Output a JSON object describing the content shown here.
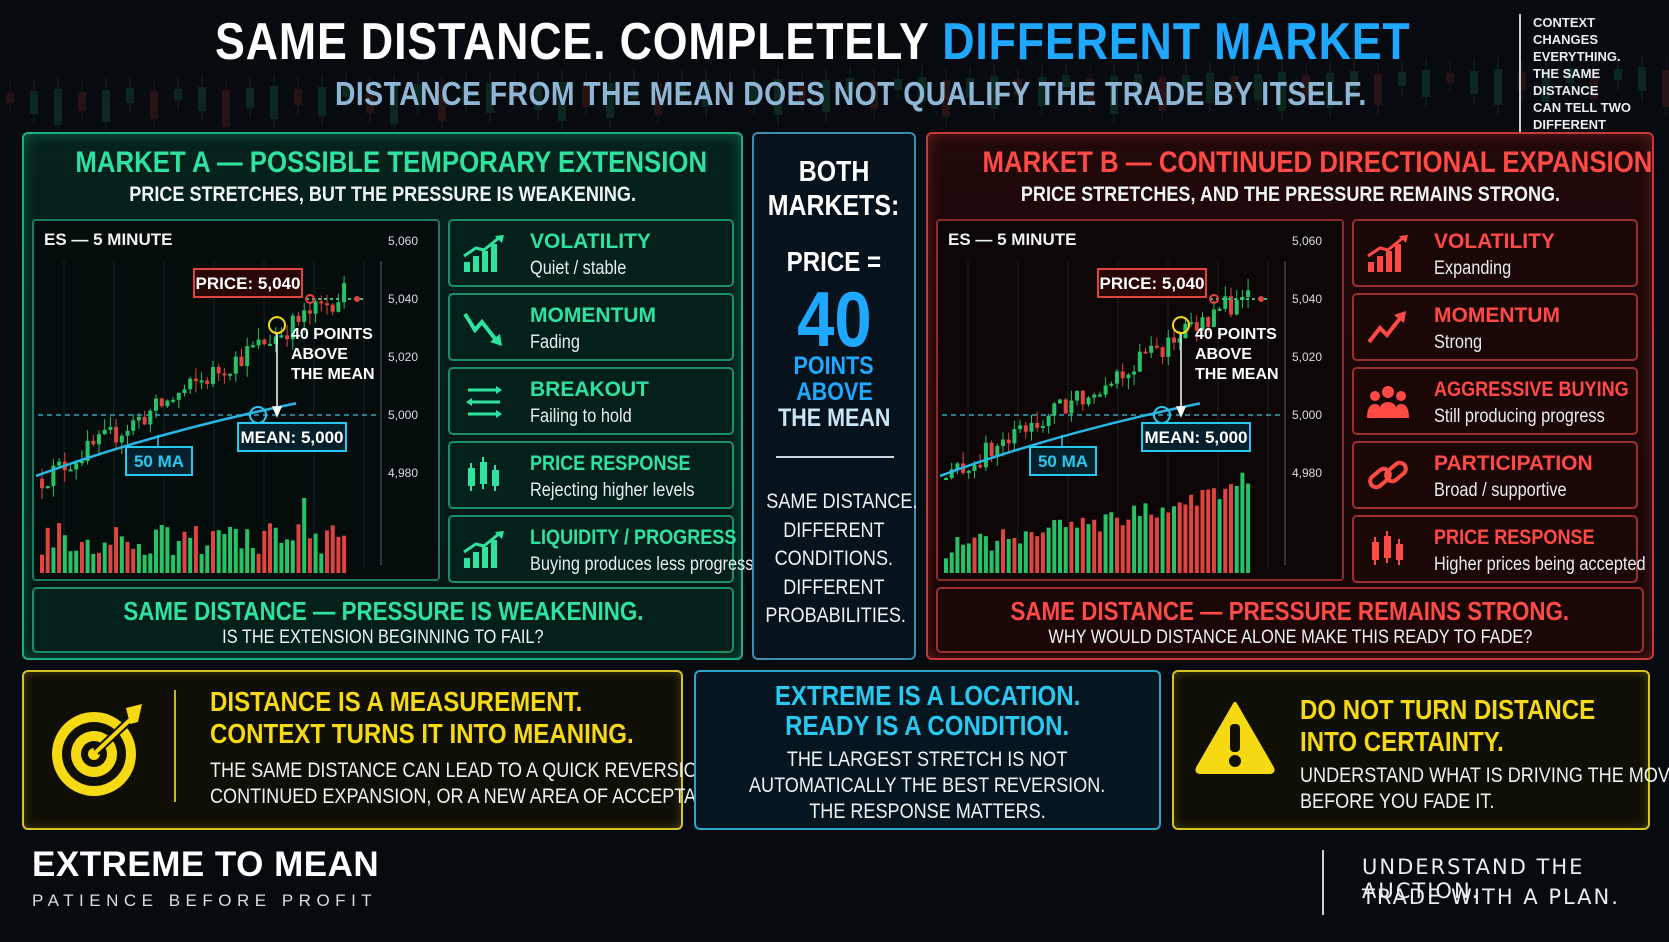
{
  "header": {
    "title_white": "SAME DISTANCE. COMPLETELY",
    "title_blue": "DIFFERENT MARKET",
    "subtitle": "DISTANCE FROM THE MEAN DOES NOT QUALIFY THE TRADE BY ITSELF.",
    "context_note": [
      "CONTEXT",
      "CHANGES",
      "EVERYTHING.",
      "THE SAME DISTANCE",
      "CAN TELL TWO",
      "DIFFERENT STORIES."
    ]
  },
  "market_a": {
    "title": "MARKET A — POSSIBLE TEMPORARY EXTENSION",
    "subtitle": "PRICE STRETCHES, BUT THE PRESSURE IS WEAKENING.",
    "chart": {
      "label": "ES — 5 MINUTE",
      "price_label": "PRICE: 5,040",
      "mean_label": "MEAN: 5,000",
      "ma_label": "50 MA",
      "distance_label": [
        "40 POINTS",
        "ABOVE",
        "THE MEAN"
      ],
      "y_ticks": [
        "5,060",
        "5,040",
        "5,020",
        "5,000",
        "4,980"
      ]
    },
    "indicators": [
      {
        "title": "VOLATILITY",
        "desc": "Quiet / stable",
        "icon": "bar-chart-up-icon"
      },
      {
        "title": "MOMENTUM",
        "desc": "Fading",
        "icon": "trend-down-icon"
      },
      {
        "title": "BREAKOUT",
        "desc": "Failing to hold",
        "icon": "arrows-back-forth-icon"
      },
      {
        "title": "PRICE RESPONSE",
        "desc": "Rejecting higher levels",
        "icon": "candlesticks-icon"
      },
      {
        "title": "LIQUIDITY / PROGRESS",
        "desc": "Buying produces less progress",
        "icon": "bar-chart-up-icon"
      }
    ],
    "footer_title": "SAME DISTANCE — PRESSURE IS WEAKENING.",
    "footer_sub": "IS THE EXTENSION BEGINNING TO FAIL?"
  },
  "middle": {
    "line1": "BOTH",
    "line2": "MARKETS:",
    "price_eq": "PRICE =",
    "big_number": "40",
    "points": "POINTS",
    "above": "ABOVE",
    "the_mean": "THE MEAN",
    "same": "SAME DISTANCE.",
    "diff1": "DIFFERENT",
    "cond": "CONDITIONS.",
    "diff2": "DIFFERENT",
    "prob": "PROBABILITIES."
  },
  "market_b": {
    "title": "MARKET B — CONTINUED DIRECTIONAL EXPANSION",
    "subtitle": "PRICE STRETCHES, AND THE PRESSURE REMAINS STRONG.",
    "chart": {
      "label": "ES — 5 MINUTE",
      "price_label": "PRICE: 5,040",
      "mean_label": "MEAN: 5,000",
      "ma_label": "50 MA",
      "distance_label": [
        "40 POINTS",
        "ABOVE",
        "THE MEAN"
      ],
      "y_ticks": [
        "5,060",
        "5,040",
        "5,020",
        "5,000",
        "4,980"
      ]
    },
    "indicators": [
      {
        "title": "VOLATILITY",
        "desc": "Expanding",
        "icon": "bar-chart-up-icon"
      },
      {
        "title": "MOMENTUM",
        "desc": "Strong",
        "icon": "trend-up-icon"
      },
      {
        "title": "AGGRESSIVE BUYING",
        "desc": "Still producing progress",
        "icon": "people-icon"
      },
      {
        "title": "PARTICIPATION",
        "desc": "Broad / supportive",
        "icon": "chain-link-icon"
      },
      {
        "title": "PRICE RESPONSE",
        "desc": "Higher prices being accepted",
        "icon": "candlesticks-icon"
      }
    ],
    "footer_title": "SAME DISTANCE — PRESSURE REMAINS STRONG.",
    "footer_sub": "WHY WOULD DISTANCE ALONE MAKE THIS READY TO FADE?"
  },
  "bottom": {
    "left": {
      "title1": "DISTANCE IS A MEASUREMENT.",
      "title2": "CONTEXT TURNS IT INTO MEANING.",
      "body1": "THE SAME DISTANCE CAN LEAD TO A QUICK REVERSION,",
      "body2": "CONTINUED EXPANSION, OR A NEW AREA OF ACCEPTANCE.",
      "icon": "target-icon"
    },
    "center": {
      "title1": "EXTREME IS A LOCATION.",
      "title2": "READY IS A CONDITION.",
      "body1": "THE LARGEST STRETCH IS NOT",
      "body2": "AUTOMATICALLY THE BEST REVERSION.",
      "body3": "THE RESPONSE MATTERS."
    },
    "right": {
      "title1": "DO NOT TURN DISTANCE",
      "title2": "INTO CERTAINTY.",
      "body1": "UNDERSTAND WHAT IS DRIVING THE MOVE",
      "body2": "BEFORE YOU FADE IT.",
      "icon": "warning-icon"
    }
  },
  "brand": {
    "name": "EXTREME TO MEAN",
    "tagline": "PATIENCE BEFORE PROFIT"
  },
  "closing": {
    "line1": "UNDERSTAND THE AUCTION.",
    "line2": "TRADE WITH A PLAN."
  },
  "colors": {
    "green": "#2fe2a0",
    "red": "#ff4a46",
    "blue": "#1ea8ff",
    "cyan": "#29c8f0",
    "yellow": "#f5d912"
  }
}
